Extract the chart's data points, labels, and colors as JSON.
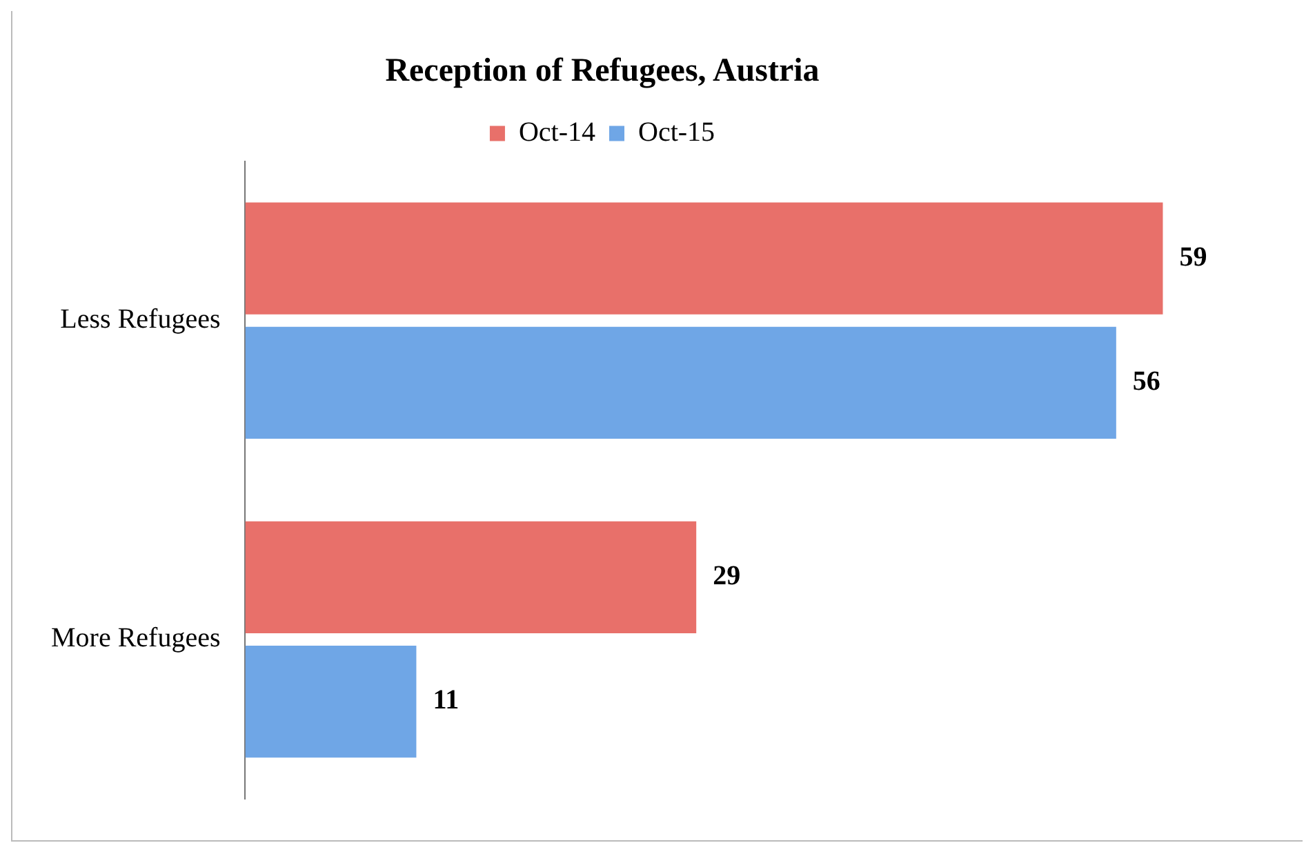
{
  "chart_data": {
    "type": "bar",
    "orientation": "horizontal",
    "title": "Reception of Refugees, Austria",
    "categories": [
      "Less Refugees",
      "More Refugees"
    ],
    "series": [
      {
        "name": "Oct-14",
        "color": "#e8706a",
        "values": [
          59,
          29
        ]
      },
      {
        "name": "Oct-15",
        "color": "#6fa6e6",
        "values": [
          56,
          11
        ]
      }
    ],
    "data_labels": true,
    "legend": "top",
    "tick_labels": "y"
  }
}
